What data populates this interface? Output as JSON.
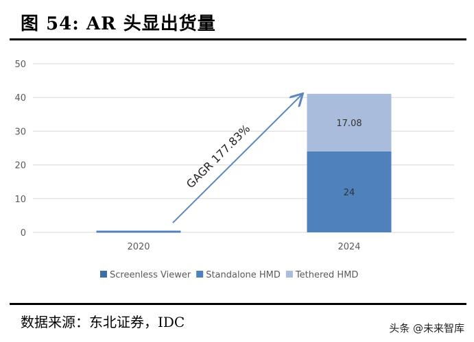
{
  "title": "图 54:  AR 头显出货量",
  "source": "数据来源：东北证券，IDC",
  "watermark": "头条 @未来智库",
  "chart_data": {
    "type": "bar",
    "stacked": true,
    "categories": [
      "2020",
      "2024"
    ],
    "series": [
      {
        "name": "Screenless Viewer",
        "color": "#3f6ea6",
        "values": [
          0,
          0
        ]
      },
      {
        "name": "Standalone HMD",
        "color": "#4f81bd",
        "values": [
          0.5,
          24
        ]
      },
      {
        "name": "Tethered HMD",
        "color": "#a9bcdb",
        "values": [
          0,
          17.08
        ]
      }
    ],
    "data_labels": {
      "2024": [
        "24",
        "17.08"
      ]
    },
    "ylim": [
      0,
      50
    ],
    "yticks": [
      0,
      10,
      20,
      30,
      40,
      50
    ],
    "grid": true,
    "legend": "bottom",
    "annotation": "GAGR 177.83%",
    "arrow_color": "#5b86c0"
  }
}
